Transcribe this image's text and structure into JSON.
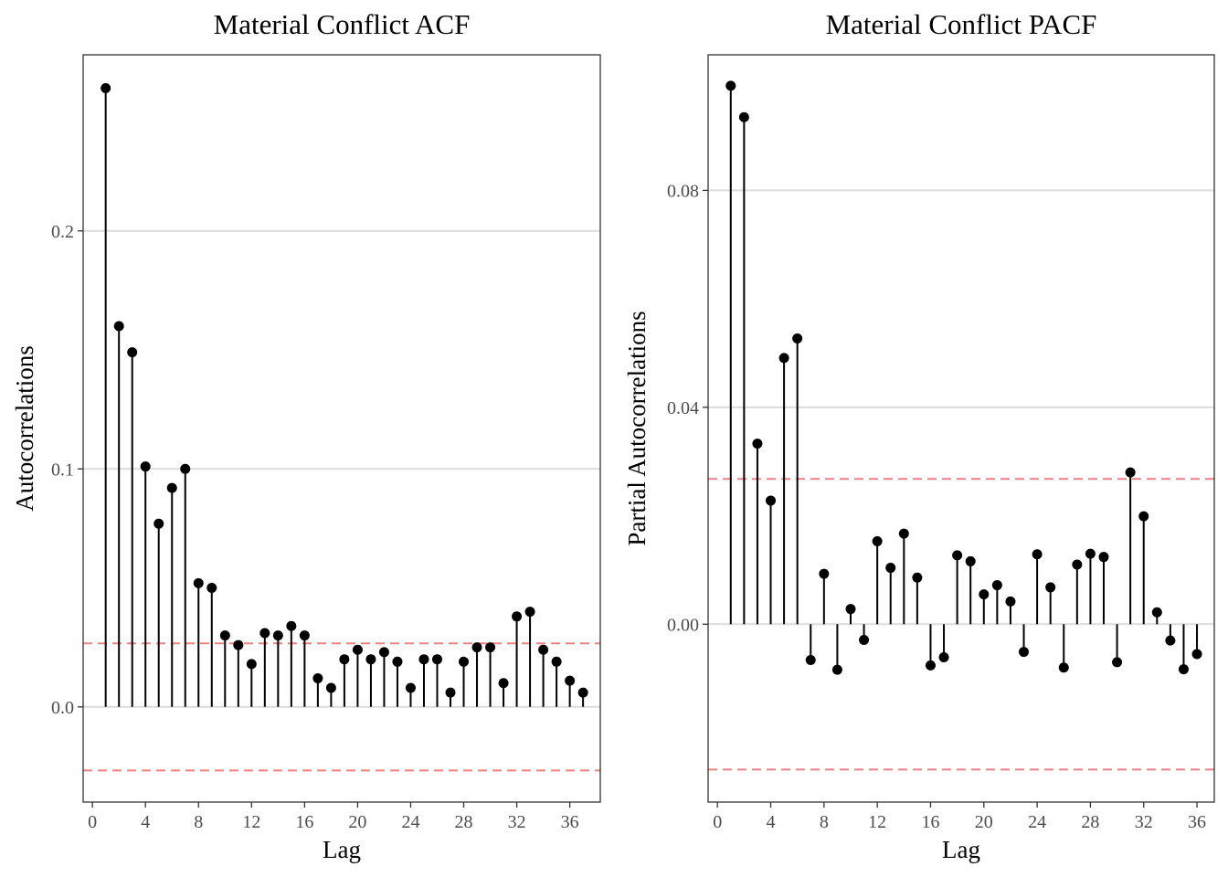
{
  "charts": [
    {
      "chart_data": {
        "type": "lollipop",
        "title": "Material Conflict ACF",
        "xlabel": "Lag",
        "ylabel": "Autocorrelations",
        "xlim": [
          -0.7,
          38.3
        ],
        "ylim": [
          -0.04,
          0.274
        ],
        "x_ticks": [
          0,
          4,
          8,
          12,
          16,
          20,
          24,
          28,
          32,
          36
        ],
        "y_ticks": [
          0.0,
          0.1,
          0.2
        ],
        "y_tick_labels": [
          "0.0",
          "0.1",
          "0.2"
        ],
        "confidence_bounds": [
          0.0267,
          -0.0267
        ],
        "lags": [
          1,
          2,
          3,
          4,
          5,
          6,
          7,
          8,
          9,
          10,
          11,
          12,
          13,
          14,
          15,
          16,
          17,
          18,
          19,
          20,
          21,
          22,
          23,
          24,
          25,
          26,
          27,
          28,
          29,
          30,
          31,
          32,
          33,
          34,
          35,
          36,
          37
        ],
        "values": [
          0.26,
          0.16,
          0.149,
          0.101,
          0.077,
          0.092,
          0.1,
          0.052,
          0.05,
          0.03,
          0.026,
          0.018,
          0.031,
          0.03,
          0.034,
          0.03,
          0.012,
          0.008,
          0.02,
          0.024,
          0.02,
          0.023,
          0.019,
          0.008,
          0.02,
          0.02,
          0.006,
          0.019,
          0.025,
          0.025,
          0.01,
          0.038,
          0.04,
          0.024,
          0.019,
          0.011,
          0.006
        ],
        "grid": true
      }
    },
    {
      "chart_data": {
        "type": "lollipop",
        "title": "Material Conflict PACF",
        "xlabel": "Lag",
        "ylabel": "Partial Autocorrelations",
        "xlim": [
          -0.7,
          37.3
        ],
        "ylim": [
          -0.0328,
          0.105
        ],
        "x_ticks": [
          0,
          4,
          8,
          12,
          16,
          20,
          24,
          28,
          32,
          36
        ],
        "y_ticks": [
          0.0,
          0.04,
          0.08
        ],
        "y_tick_labels": [
          "0.00",
          "0.04",
          "0.08"
        ],
        "confidence_bounds": [
          0.0268,
          -0.0268
        ],
        "lags": [
          1,
          2,
          3,
          4,
          5,
          6,
          7,
          8,
          9,
          10,
          11,
          12,
          13,
          14,
          15,
          16,
          17,
          18,
          19,
          20,
          21,
          22,
          23,
          24,
          25,
          26,
          27,
          28,
          29,
          30,
          31,
          32,
          33,
          34,
          35,
          36
        ],
        "values": [
          0.0993,
          0.0935,
          0.0333,
          0.0228,
          0.0491,
          0.0527,
          -0.0066,
          0.0093,
          -0.0084,
          0.0028,
          -0.0029,
          0.0153,
          0.0104,
          0.0167,
          0.0086,
          -0.0076,
          -0.0061,
          0.0127,
          0.0116,
          0.0055,
          0.0072,
          0.0042,
          -0.0051,
          0.0129,
          0.0068,
          -0.008,
          0.011,
          0.013,
          0.0124,
          -0.007,
          0.028,
          0.0199,
          0.0022,
          -0.003,
          -0.0083,
          -0.0055
        ],
        "grid": true
      }
    }
  ],
  "colors": {
    "stem": "#000000",
    "point": "#000000",
    "confidence_line": "#f08080",
    "grid": "#dcdcdc",
    "panel_border": "#333333",
    "tick_label": "#4d4d4d"
  }
}
